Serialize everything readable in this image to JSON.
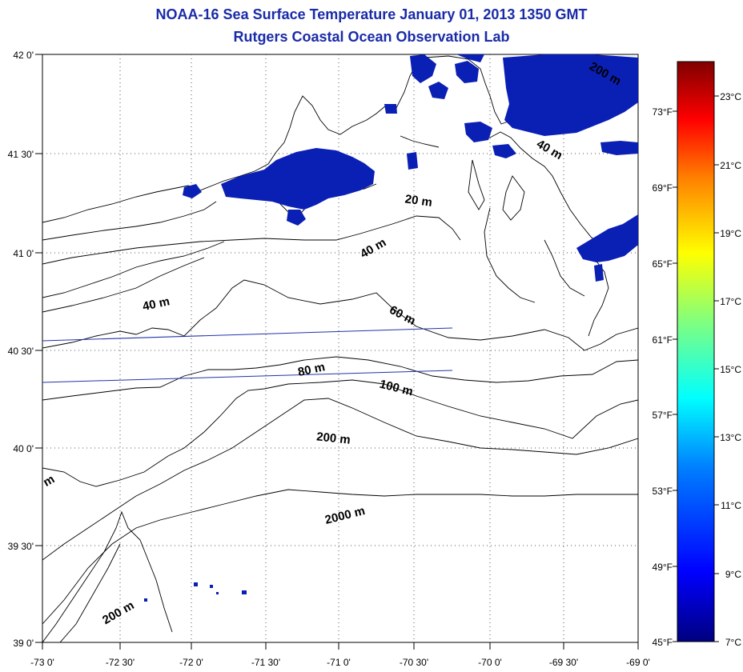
{
  "title": "NOAA-16 Sea Surface Temperature January 01, 2013 1350 GMT",
  "subtitle": "Rutgers Coastal Ocean Observation Lab",
  "lat_labels": [
    "42 0'",
    "41 30'",
    "41 0'",
    "40 30'",
    "40 0'",
    "39 30'",
    "39 0'"
  ],
  "lon_labels": [
    "-73 0'",
    "-72 30'",
    "-72 0'",
    "-71 30'",
    "-71 0'",
    "-70 30'",
    "-70 0'",
    "-69 30'",
    "-69 0'"
  ],
  "contour_labels": [
    "20 m",
    "40 m",
    "40 m",
    "40 m",
    "60 m",
    "80 m",
    "100 m",
    "200 m",
    "2000 m",
    "200 m",
    "m",
    "200 m"
  ],
  "colorbar": {
    "celsius_labels": [
      "23°C",
      "21°C",
      "19°C",
      "17°C",
      "15°C",
      "13°C",
      "11°C",
      "9°C",
      "7°C"
    ],
    "fahrenheit_labels": [
      "73°F",
      "69°F",
      "65°F",
      "61°F",
      "57°F",
      "53°F",
      "49°F",
      "45°F"
    ],
    "stops": [
      "#00007f",
      "#0000ff",
      "#007fff",
      "#00ffff",
      "#7fff7f",
      "#ffff00",
      "#ff7f00",
      "#ff0000",
      "#7f0000"
    ]
  },
  "colors": {
    "title": "#1a2ba8",
    "sst_patch": "#0a1fb4",
    "track": "#2233aa"
  }
}
